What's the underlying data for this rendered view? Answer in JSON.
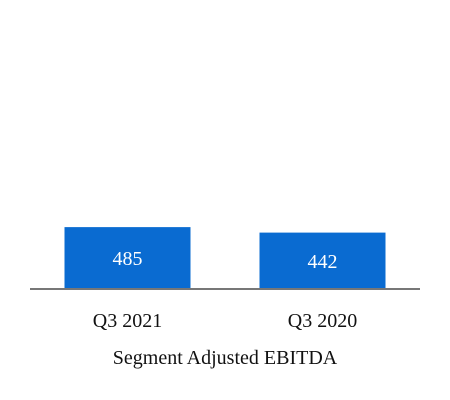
{
  "chart_data": {
    "type": "bar",
    "title": "",
    "xlabel": "Segment Adjusted EBITDA",
    "ylabel": "",
    "categories": [
      "Q3 2021",
      "Q3 2020"
    ],
    "values": [
      485,
      442
    ],
    "data_labels": [
      "485",
      "442"
    ],
    "ylim": [
      0,
      500
    ],
    "grid": false,
    "legend": "none",
    "colors": {
      "bar": "#0A6BD1",
      "axis": "#777777",
      "label_text": "#FFFFFF",
      "text": "#111111"
    }
  }
}
